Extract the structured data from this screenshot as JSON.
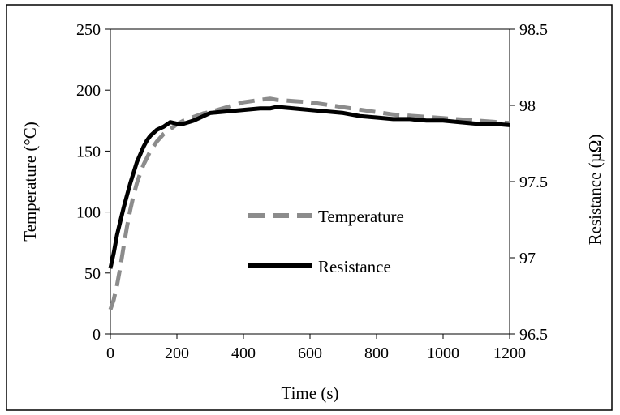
{
  "chart_data": {
    "type": "line",
    "xlabel": "Time (s)",
    "ylabel_left": "Temperature (°C)",
    "ylabel_right": "Resistance (µΩ)",
    "xlim": [
      0,
      1200
    ],
    "ylim_left": [
      0,
      250
    ],
    "ylim_right": [
      96.5,
      98.5
    ],
    "x_ticks": [
      0,
      200,
      400,
      600,
      800,
      1000,
      1200
    ],
    "y_left_ticks": [
      0,
      50,
      100,
      150,
      200,
      250
    ],
    "y_right_ticks": [
      96.5,
      97,
      97.5,
      98,
      98.5
    ],
    "grid": false,
    "legend_position": "center",
    "series": [
      {
        "name": "Temperature",
        "axis": "left",
        "color": "#8c8c8c",
        "style": "dashed",
        "x": [
          0,
          10,
          20,
          30,
          40,
          50,
          60,
          70,
          80,
          90,
          100,
          120,
          140,
          160,
          180,
          200,
          220,
          250,
          280,
          300,
          350,
          400,
          450,
          480,
          500,
          550,
          600,
          650,
          700,
          750,
          800,
          850,
          900,
          950,
          1000,
          1050,
          1100,
          1150,
          1200
        ],
        "values": [
          20,
          28,
          40,
          55,
          72,
          88,
          102,
          114,
          124,
          132,
          139,
          150,
          158,
          164,
          168,
          172,
          175,
          178,
          181,
          182,
          186,
          190,
          192,
          193,
          192,
          191,
          190,
          188,
          186,
          184,
          182,
          180,
          179,
          178,
          177,
          176,
          175,
          174,
          173
        ]
      },
      {
        "name": "Resistance",
        "axis": "right",
        "color": "#000000",
        "style": "solid",
        "x": [
          0,
          10,
          20,
          30,
          40,
          50,
          60,
          70,
          80,
          90,
          100,
          110,
          120,
          140,
          160,
          180,
          200,
          220,
          250,
          280,
          300,
          350,
          400,
          450,
          480,
          500,
          550,
          600,
          650,
          700,
          750,
          800,
          850,
          900,
          950,
          1000,
          1050,
          1100,
          1150,
          1200
        ],
        "values": [
          96.93,
          97.03,
          97.15,
          97.24,
          97.33,
          97.41,
          97.49,
          97.56,
          97.63,
          97.68,
          97.73,
          97.77,
          97.8,
          97.84,
          97.86,
          97.89,
          97.88,
          97.88,
          97.9,
          97.93,
          97.95,
          97.96,
          97.97,
          97.98,
          97.98,
          97.99,
          97.98,
          97.97,
          97.96,
          97.95,
          97.93,
          97.92,
          97.91,
          97.91,
          97.9,
          97.9,
          97.89,
          97.88,
          97.88,
          97.87
        ]
      }
    ]
  }
}
